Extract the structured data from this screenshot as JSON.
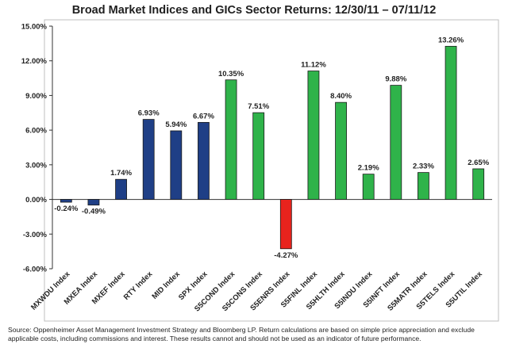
{
  "title": "Broad Market Indices and GICs Sector Returns: 12/30/11 – 07/11/12",
  "source_text": "Source: Oppenheimer Asset Management Investment Strategy and Bloomberg LP.  Return calculations are based on simple price appreciation and exclude applicable costs, including commissions and interest. These results cannot and should not be used as an indicator of future performance.",
  "chart_data": {
    "type": "bar",
    "title": "Broad Market Indices and GICs Sector Returns: 12/30/11 – 07/11/12",
    "xlabel": "",
    "ylabel": "",
    "ylim": [
      -6,
      15
    ],
    "yticks": [
      15,
      12,
      9,
      6,
      3,
      0,
      -3,
      -6
    ],
    "ytick_labels": [
      "15.00%",
      "12.00%",
      "9.00%",
      "6.00%",
      "3.00%",
      "0.00%",
      "-3.00%",
      "-6.00%"
    ],
    "grid": false,
    "categories": [
      "MXWDU Index",
      "MXEA Index",
      "MXEF Index",
      "RTY Index",
      "MID Index",
      "SPX Index",
      "S5COND Index",
      "S5CONS Index",
      "S5ENRS Index",
      "S5FINL Index",
      "S5HLTH Index",
      "S5INDU Index",
      "S5INFT Index",
      "S5MATR Index",
      "S5TELS Index",
      "S5UTIL Index"
    ],
    "values": [
      -0.24,
      -0.49,
      1.74,
      6.93,
      5.94,
      6.67,
      10.35,
      7.51,
      -4.27,
      11.12,
      8.4,
      2.19,
      9.88,
      2.33,
      13.26,
      2.65
    ],
    "value_labels": [
      "-0.24%",
      "-0.49%",
      "1.74%",
      "6.93%",
      "5.94%",
      "6.67%",
      "10.35%",
      "7.51%",
      "-4.27%",
      "11.12%",
      "8.40%",
      "2.19%",
      "9.88%",
      "2.33%",
      "13.26%",
      "2.65%"
    ],
    "colors": [
      "#1f3f86",
      "#1f3f86",
      "#1f3f86",
      "#1f3f86",
      "#1f3f86",
      "#1f3f86",
      "#2fb34a",
      "#2fb34a",
      "#e8231d",
      "#2fb34a",
      "#2fb34a",
      "#2fb34a",
      "#2fb34a",
      "#2fb34a",
      "#2fb34a",
      "#2fb34a"
    ],
    "bar_stroke": "#1a1a1a"
  }
}
